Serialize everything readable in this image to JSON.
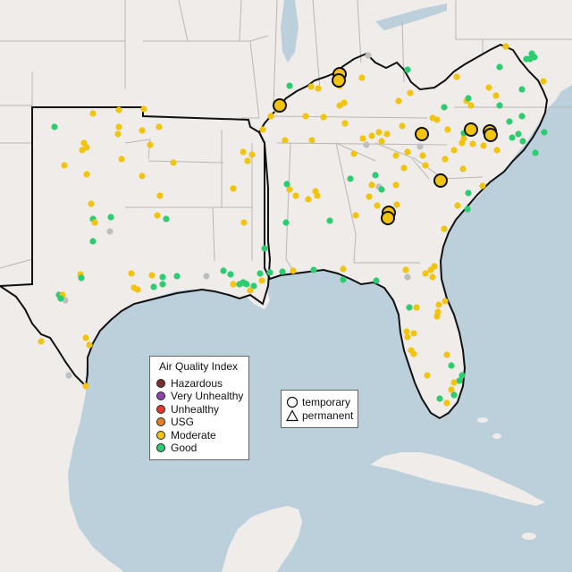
{
  "legend": {
    "title": "Air Quality Index",
    "categories": [
      {
        "label": "Hazardous",
        "color": "#7e2f2f"
      },
      {
        "label": "Very Unhealthy",
        "color": "#8e44ad"
      },
      {
        "label": "Unhealthy",
        "color": "#e53b2c"
      },
      {
        "label": "USG",
        "color": "#e67e22"
      },
      {
        "label": "Moderate",
        "color": "#f1c40f"
      },
      {
        "label": "Good",
        "color": "#2ecc71"
      }
    ]
  },
  "monitor_types": [
    {
      "label": "temporary",
      "icon": "circle-icon"
    },
    {
      "label": "permanent",
      "icon": "triangle-icon"
    }
  ],
  "colors": {
    "land": "#efecea",
    "water": "#bcd0dc",
    "highlight_outline": "#111111",
    "no_data": "#bfbfbf"
  }
}
